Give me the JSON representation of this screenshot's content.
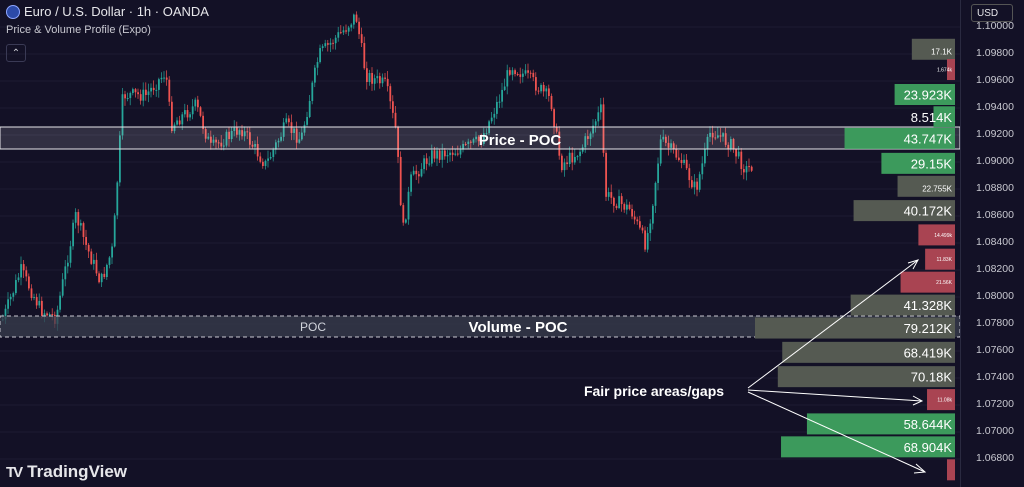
{
  "header": {
    "symbol": "Euro / U.S. Dollar · 1h · OANDA",
    "indicator": "Price & Volume Profile (Expo)",
    "collapse_icon": "chevron-up-icon"
  },
  "axis": {
    "currency_button": "USD",
    "ticks": [
      "1.10000",
      "1.09800",
      "1.09600",
      "1.09400",
      "1.09200",
      "1.09000",
      "1.08800",
      "1.08600",
      "1.08400",
      "1.08200",
      "1.08000",
      "1.07800",
      "1.07600",
      "1.07400",
      "1.07200",
      "1.07000",
      "1.06800"
    ]
  },
  "brand": {
    "logo": "TV",
    "name": "TradingView"
  },
  "annotations": {
    "price_poc": "Price - POC",
    "volume_poc": "Volume - POC",
    "poc_label": "POC",
    "fair_price": "Fair price areas/gaps"
  },
  "profile_bars": [
    {
      "label": "17.1K",
      "price": 1.09835,
      "type": "neutral",
      "value": 17.1
    },
    {
      "label": "1.674k",
      "price": 1.09685,
      "type": "red",
      "value": 1.674
    },
    {
      "label": "23.923K",
      "price": 1.095,
      "type": "green",
      "value": 23.923
    },
    {
      "label": "8.514K",
      "price": 1.09335,
      "type": "green",
      "value": 8.514
    },
    {
      "label": "43.747K",
      "price": 1.09175,
      "type": "green",
      "value": 43.747
    },
    {
      "label": "29.15K",
      "price": 1.0899,
      "type": "green",
      "value": 29.15
    },
    {
      "label": "22.755K",
      "price": 1.0882,
      "type": "neutral",
      "value": 22.755
    },
    {
      "label": "40.172K",
      "price": 1.0864,
      "type": "neutral",
      "value": 40.172
    },
    {
      "label": "14.499k",
      "price": 1.0846,
      "type": "red",
      "value": 14.499
    },
    {
      "label": "11.83K",
      "price": 1.0828,
      "type": "red",
      "value": 11.83
    },
    {
      "label": "21.56K",
      "price": 1.0811,
      "type": "red",
      "value": 21.56
    },
    {
      "label": "41.328K",
      "price": 1.0794,
      "type": "neutral",
      "value": 41.328
    },
    {
      "label": "79.212K",
      "price": 1.0777,
      "type": "neutral",
      "value": 79.212
    },
    {
      "label": "68.419K",
      "price": 1.0759,
      "type": "neutral",
      "value": 68.419
    },
    {
      "label": "70.18K",
      "price": 1.0741,
      "type": "neutral",
      "value": 70.18
    },
    {
      "label": "11.08k",
      "price": 1.0724,
      "type": "red",
      "value": 11.08
    },
    {
      "label": "58.644K",
      "price": 1.0706,
      "type": "green",
      "value": 58.644
    },
    {
      "label": "68.904K",
      "price": 1.0689,
      "type": "green",
      "value": 68.904
    },
    {
      "label": "",
      "price": 1.0672,
      "type": "red",
      "value": 3.0
    }
  ],
  "colors": {
    "background": "#131126",
    "bull": "#26a69a",
    "bear": "#ef5350",
    "profile_green": "#3c9a5c",
    "profile_red": "#a94452",
    "profile_neutral": "#555a52",
    "poc_band": "#3a3e4e",
    "grid": "#1d1b33"
  }
}
